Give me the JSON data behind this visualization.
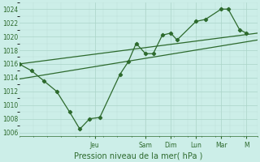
{
  "title": "Pression niveau de la mer( hPa )",
  "bg_color": "#cceee8",
  "line_color": "#2d6a2d",
  "grid_major_color": "#aad4c8",
  "grid_minor_color": "#bbddd5",
  "ylim": [
    1005.5,
    1025.0
  ],
  "yticks": [
    1006,
    1008,
    1010,
    1012,
    1014,
    1016,
    1018,
    1020,
    1022,
    1024
  ],
  "day_positions": [
    0.333,
    0.556,
    0.667,
    0.778,
    0.889,
    1.0
  ],
  "day_labels": [
    "Jeu",
    "Sam",
    "Dim",
    "Lun",
    "Mar",
    "M"
  ],
  "xlim": [
    0.0,
    1.05
  ],
  "main_x": [
    0.0,
    0.055,
    0.11,
    0.165,
    0.222,
    0.267,
    0.31,
    0.355,
    0.444,
    0.48,
    0.515,
    0.556,
    0.59,
    0.63,
    0.667,
    0.695,
    0.778,
    0.82,
    0.889,
    0.92,
    0.97,
    1.0
  ],
  "main_y": [
    1016,
    1015,
    1013.5,
    1012,
    1009,
    1006.5,
    1008.0,
    1008.2,
    1014.5,
    1016.3,
    1019.0,
    1017.5,
    1017.5,
    1020.2,
    1020.5,
    1019.5,
    1022.2,
    1022.5,
    1024.0,
    1024.0,
    1021.0,
    1020.5
  ],
  "trend1_x": [
    0.0,
    1.05
  ],
  "trend1_y": [
    1016.0,
    1020.5
  ],
  "trend2_x": [
    0.0,
    1.05
  ],
  "trend2_y": [
    1013.8,
    1019.5
  ]
}
